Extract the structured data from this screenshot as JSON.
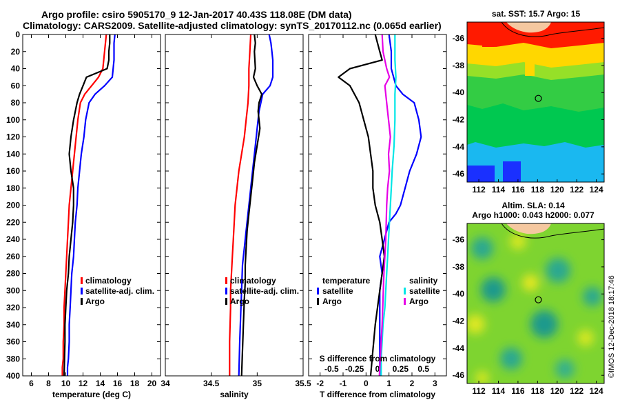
{
  "header": {
    "line1": "Argo profile: csiro 5905170_9 12-Jan-2017 40.43S 118.08E (DM data)",
    "line2": "Climatology: CARS2009. Satellite-adjusted climatology: synTS_20170112.nc (0.065d earlier)"
  },
  "colors": {
    "climatology": "#ff0000",
    "satellite": "#0000ff",
    "argo": "#000000",
    "s_satellite": "#00e6e6",
    "s_argo": "#e600e6"
  },
  "watermark": "©IMOS 12-Dec-2018 18:17:46",
  "chart_data": [
    {
      "type": "line",
      "panel": "temperature",
      "xlabel": "temperature (deg C)",
      "xlim": [
        5,
        21
      ],
      "xticks": [
        6,
        8,
        10,
        12,
        14,
        16,
        18,
        20
      ],
      "ylim": [
        400,
        0
      ],
      "yticks": [
        0,
        20,
        40,
        60,
        80,
        100,
        120,
        140,
        160,
        180,
        200,
        220,
        240,
        260,
        280,
        300,
        320,
        340,
        360,
        380,
        400
      ],
      "legend": [
        "climatology",
        "satellite-adj. clim.",
        "Argo"
      ],
      "series": [
        {
          "name": "climatology",
          "color": "#ff0000",
          "x": [
            14.7,
            14.5,
            14.3,
            13.8,
            13.0,
            12.2,
            11.7,
            11.4,
            11.2,
            11.0,
            10.8,
            10.6,
            10.4,
            10.3,
            10.2,
            10.1,
            10.0,
            9.9,
            9.8,
            9.8,
            9.7,
            9.7,
            9.7,
            9.6,
            9.6
          ],
          "y": [
            0,
            20,
            40,
            50,
            60,
            70,
            80,
            100,
            120,
            140,
            160,
            180,
            200,
            220,
            240,
            260,
            280,
            300,
            320,
            340,
            360,
            370,
            380,
            390,
            400
          ]
        },
        {
          "name": "satellite-adj. clim.",
          "color": "#0000ff",
          "x": [
            15.7,
            15.6,
            15.6,
            15.6,
            15.4,
            14.5,
            13.4,
            12.7,
            12.3,
            12.1,
            11.8,
            11.6,
            11.4,
            11.3,
            11.1,
            11.0,
            10.9,
            10.7,
            10.6,
            10.5,
            10.4,
            10.4,
            10.3,
            10.2,
            10.2
          ],
          "y": [
            0,
            10,
            20,
            30,
            50,
            60,
            70,
            80,
            100,
            120,
            140,
            160,
            180,
            200,
            220,
            240,
            260,
            280,
            300,
            320,
            340,
            360,
            380,
            390,
            400
          ]
        },
        {
          "name": "Argo",
          "color": "#000000",
          "x": [
            15.1,
            15.1,
            15.0,
            15.0,
            14.8,
            12.4,
            12.0,
            11.6,
            11.3,
            10.9,
            10.6,
            10.4,
            10.6,
            10.9,
            10.9,
            10.8,
            10.6,
            10.4,
            10.3,
            10.1,
            10.0,
            9.9,
            9.9,
            9.8
          ],
          "y": [
            0,
            10,
            20,
            30,
            40,
            50,
            60,
            70,
            80,
            100,
            120,
            140,
            160,
            180,
            200,
            220,
            240,
            260,
            280,
            300,
            320,
            340,
            360,
            400
          ]
        }
      ]
    },
    {
      "type": "line",
      "panel": "salinity",
      "xlabel": "salinity",
      "xlim": [
        34,
        35.5
      ],
      "xticks": [
        34,
        34.5,
        35,
        35.5
      ],
      "ylim": [
        400,
        0
      ],
      "legend": [
        "climatology",
        "satellite-adj. clim.",
        "Argo"
      ],
      "series": [
        {
          "name": "climatology",
          "color": "#ff0000",
          "x": [
            34.93,
            34.92,
            34.91,
            34.91,
            34.9,
            34.88,
            34.86,
            34.83,
            34.8,
            34.78,
            34.76,
            34.75,
            34.74,
            34.73,
            34.72,
            34.71,
            34.71,
            34.7,
            34.7
          ],
          "y": [
            0,
            20,
            40,
            60,
            80,
            100,
            120,
            140,
            160,
            180,
            200,
            220,
            240,
            260,
            280,
            300,
            320,
            360,
            400
          ]
        },
        {
          "name": "satellite-adj. clim.",
          "color": "#0000ff",
          "x": [
            35.13,
            35.15,
            35.16,
            35.17,
            35.17,
            35.14,
            35.06,
            35.02,
            35.0,
            34.98,
            34.96,
            34.94,
            34.92,
            34.9,
            34.88,
            34.86,
            34.84,
            34.83,
            34.82,
            34.81,
            34.8
          ],
          "y": [
            0,
            10,
            20,
            30,
            50,
            60,
            70,
            90,
            110,
            130,
            150,
            170,
            190,
            210,
            230,
            250,
            270,
            300,
            330,
            360,
            400
          ]
        },
        {
          "name": "Argo",
          "color": "#000000",
          "x": [
            34.97,
            34.98,
            34.97,
            34.98,
            34.96,
            35.0,
            35.05,
            35.02,
            35.01,
            35.03,
            35.0,
            34.97,
            34.95,
            34.93,
            34.91,
            34.89,
            34.88,
            34.87,
            34.87,
            34.86,
            34.85,
            34.84,
            34.83
          ],
          "y": [
            0,
            10,
            20,
            40,
            50,
            60,
            70,
            80,
            90,
            110,
            130,
            150,
            170,
            190,
            210,
            230,
            250,
            270,
            290,
            310,
            340,
            370,
            400
          ]
        }
      ]
    },
    {
      "type": "line",
      "panel": "difference",
      "xlabel": "T difference from climatology",
      "xlabel2": "S difference from climatology",
      "xlim": [
        -2.5,
        3.5
      ],
      "xticks": [
        -2,
        -1,
        0,
        1,
        2,
        3
      ],
      "xlim2": [
        -0.75,
        0.75
      ],
      "xticks2": [
        "-0.5",
        "-0.25",
        "0",
        "0.25",
        "0.5"
      ],
      "ylim": [
        400,
        0
      ],
      "legend_temperature": {
        "heading": "temperature",
        "items": [
          "satellite",
          "Argo"
        ]
      },
      "legend_salinity": {
        "heading": "salinity",
        "items": [
          "satellite",
          "Argo"
        ]
      },
      "series": [
        {
          "name": "T satellite",
          "color": "#0000ff",
          "x": [
            1.0,
            1.1,
            1.1,
            1.3,
            1.6,
            2.1,
            2.3,
            2.4,
            2.2,
            1.9,
            1.7,
            1.5,
            1.3,
            1.0,
            0.8,
            0.6,
            0.7,
            0.6,
            0.6,
            0.6,
            0.6,
            0.6
          ],
          "y": [
            0,
            20,
            40,
            60,
            70,
            80,
            100,
            120,
            140,
            160,
            180,
            200,
            210,
            220,
            240,
            260,
            280,
            300,
            320,
            340,
            370,
            400
          ]
        },
        {
          "name": "T Argo",
          "color": "#000000",
          "x": [
            0.4,
            0.6,
            0.7,
            -0.7,
            -1.2,
            -0.7,
            -0.3,
            -0.1,
            0.1,
            0.2,
            0.3,
            0.3,
            0.4,
            0.6,
            0.7,
            0.8,
            0.7,
            0.6,
            0.5,
            0.4,
            0.3,
            0.2
          ],
          "y": [
            0,
            20,
            30,
            40,
            50,
            60,
            80,
            100,
            120,
            140,
            160,
            180,
            200,
            220,
            240,
            260,
            280,
            300,
            320,
            340,
            370,
            400
          ]
        },
        {
          "name": "S satellite",
          "color": "#00e6e6",
          "x": [
            0.19,
            0.19,
            0.2,
            0.19,
            0.19,
            0.18,
            0.16,
            0.15,
            0.14,
            0.13,
            0.12,
            0.11,
            0.1,
            0.09,
            0.08,
            0.06,
            0.05,
            0.04,
            0.04
          ],
          "y": [
            0,
            30,
            50,
            70,
            100,
            130,
            160,
            180,
            200,
            220,
            240,
            260,
            280,
            300,
            320,
            340,
            360,
            380,
            400
          ]
        },
        {
          "name": "S Argo",
          "color": "#e600e6",
          "x": [
            0.05,
            0.06,
            0.1,
            0.13,
            0.08,
            0.1,
            0.12,
            0.14,
            0.12,
            0.13,
            0.11,
            0.1,
            0.09,
            0.07,
            0.06,
            0.05,
            0.04,
            0.03,
            0.02
          ],
          "y": [
            0,
            20,
            40,
            50,
            60,
            80,
            100,
            120,
            140,
            160,
            180,
            200,
            240,
            280,
            310,
            340,
            360,
            380,
            400
          ]
        }
      ]
    },
    {
      "type": "heatmap",
      "panel": "sst-map",
      "title": "sat. SST: 15.7 Argo: 15",
      "xticks": [
        112,
        114,
        116,
        118,
        120,
        122,
        124
      ],
      "yticks": [
        -36,
        -38,
        -40,
        -42,
        -44,
        -46
      ],
      "xlim": [
        110.8,
        124.8
      ],
      "ylim": [
        -46.6,
        -34.8
      ],
      "marker": {
        "lon": 118.08,
        "lat": -40.43
      }
    },
    {
      "type": "heatmap",
      "panel": "sla-map",
      "title": "Altim. SLA: 0.14",
      "subtitle": "Argo h1000: 0.043 h2000: 0.077",
      "xticks": [
        112,
        114,
        116,
        118,
        120,
        122,
        124
      ],
      "yticks": [
        -36,
        -38,
        -40,
        -42,
        -44,
        -46
      ],
      "xlim": [
        110.8,
        124.8
      ],
      "ylim": [
        -46.6,
        -34.8
      ],
      "marker": {
        "lon": 118.08,
        "lat": -40.43
      }
    }
  ]
}
